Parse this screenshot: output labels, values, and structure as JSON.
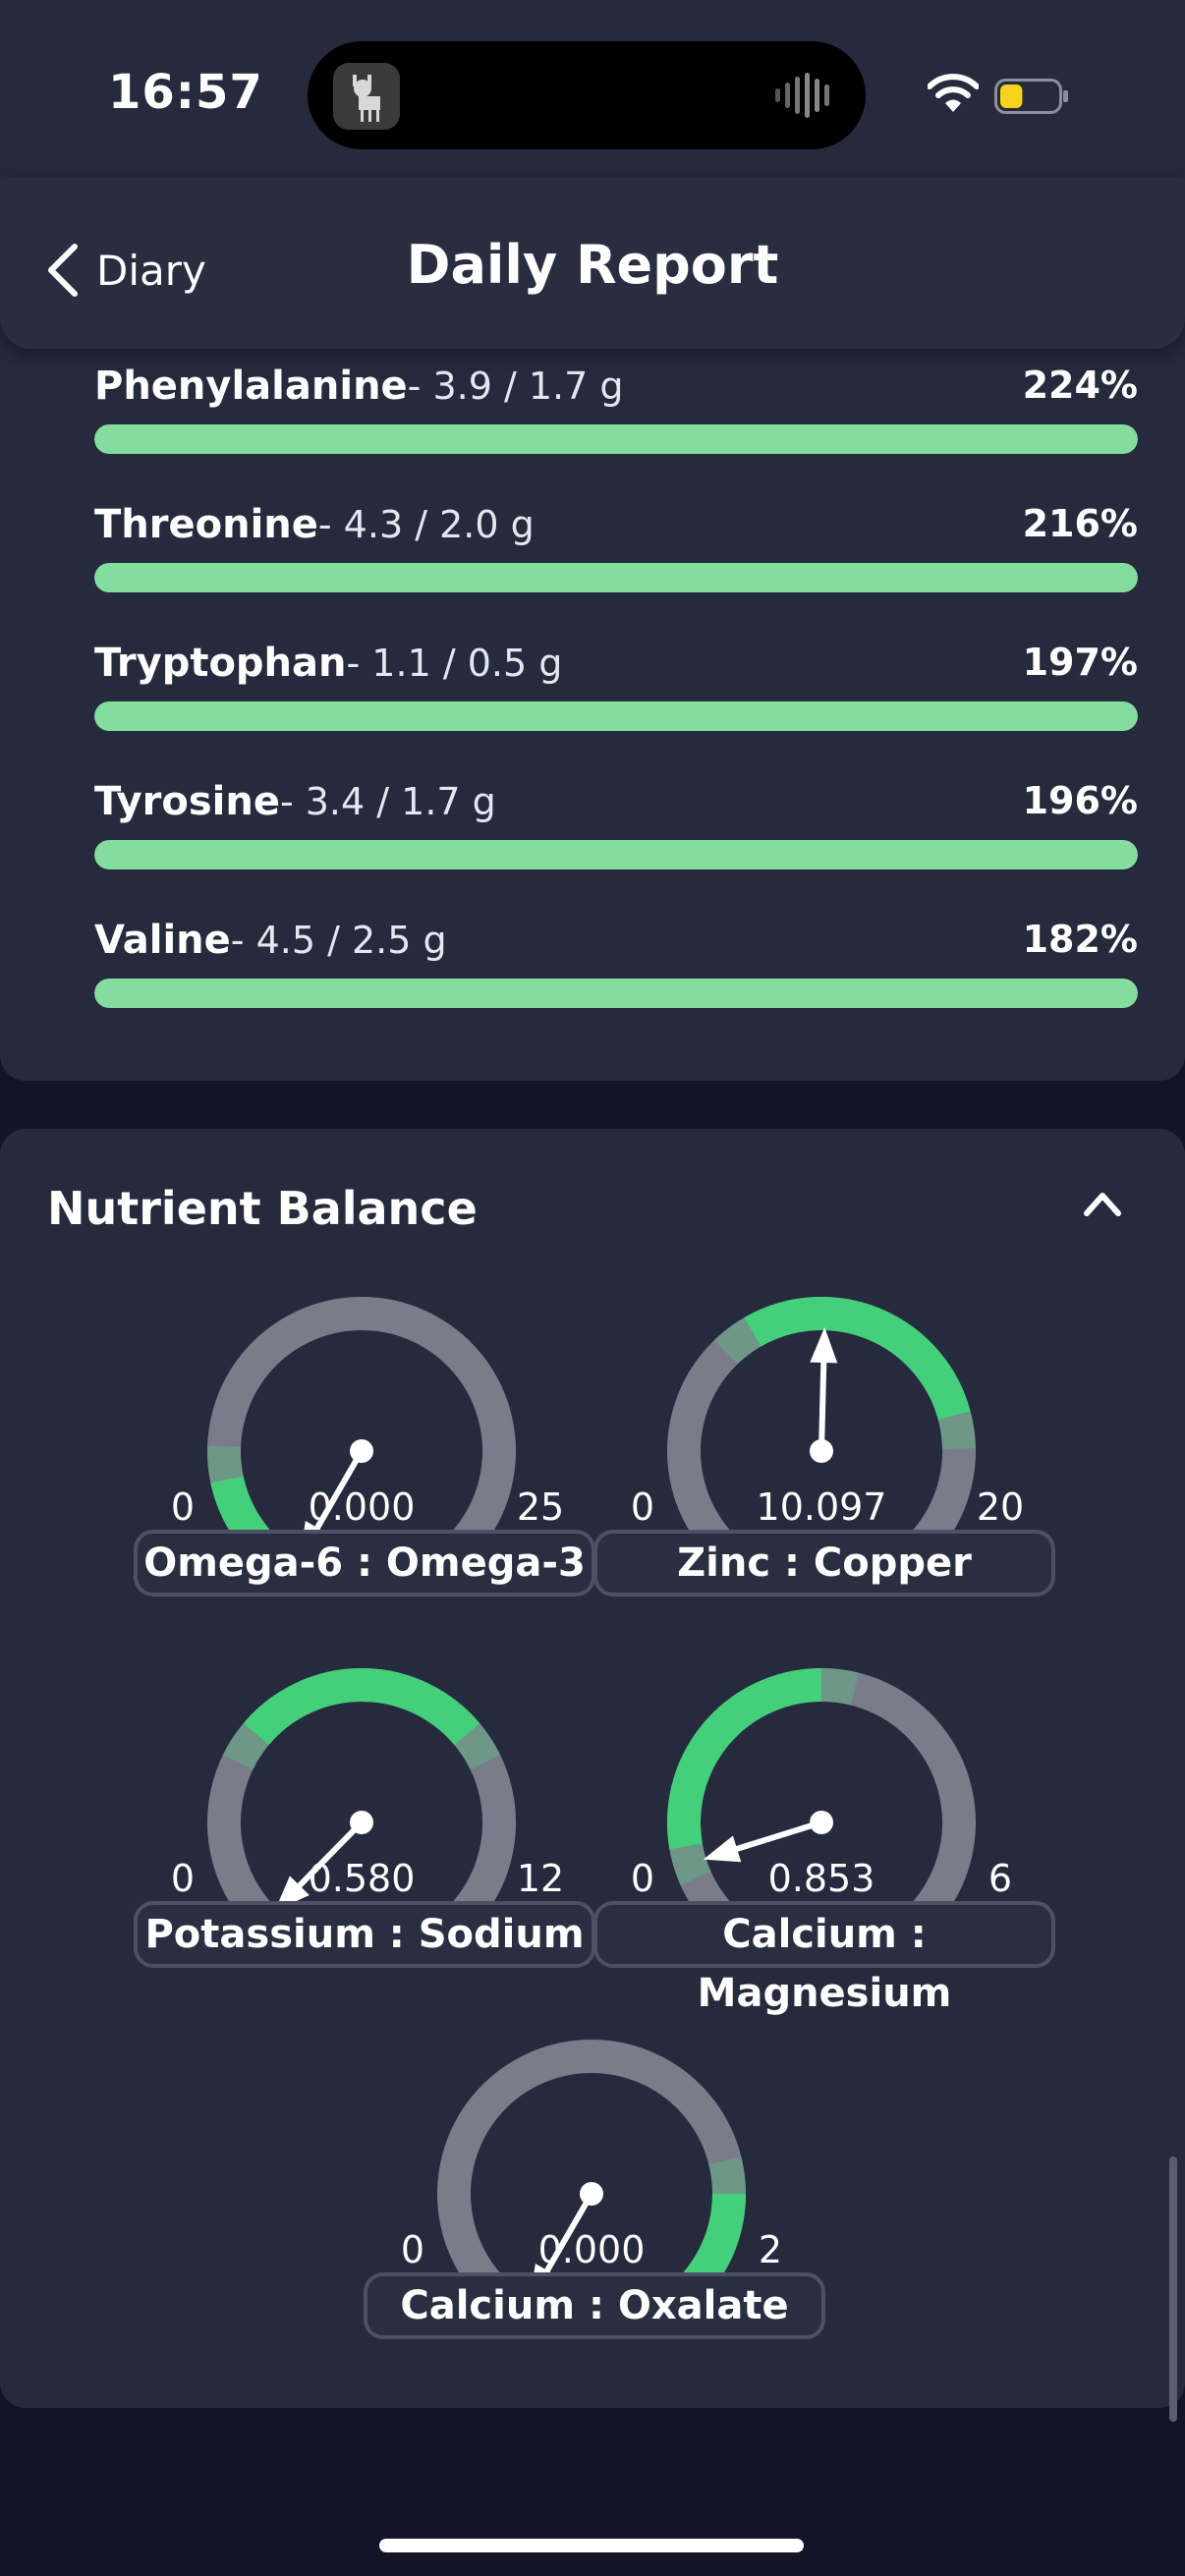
{
  "status_bar": {
    "time": "16:57",
    "wifi_icon": "wifi-icon",
    "battery_icon": "battery-low-icon",
    "battery_color": "#f5d31e",
    "battery_level": 0.4
  },
  "nav": {
    "back_label": "Diary",
    "title": "Daily Report"
  },
  "amino_acids": [
    {
      "name": "Phenylalanine",
      "amount": "- 3.9 / 1.7 g",
      "percent_label": "224%",
      "percent": 224
    },
    {
      "name": "Threonine",
      "amount": "- 4.3 / 2.0 g",
      "percent_label": "216%",
      "percent": 216
    },
    {
      "name": "Tryptophan",
      "amount": "- 1.1 / 0.5 g",
      "percent_label": "197%",
      "percent": 197
    },
    {
      "name": "Tyrosine",
      "amount": "- 3.4 / 1.7 g",
      "percent_label": "196%",
      "percent": 196
    },
    {
      "name": "Valine",
      "amount": "- 4.5 / 2.5 g",
      "percent_label": "182%",
      "percent": 182
    }
  ],
  "bar_color": "#84dc9e",
  "nutrient_balance": {
    "title": "Nutrient Balance",
    "gauges": [
      {
        "label": "Omega-6 : Omega-3",
        "min": 0,
        "max": 25,
        "value": 0,
        "value_label": "0.000",
        "good_low": 0,
        "good_high": 4
      },
      {
        "label": "Zinc : Copper",
        "min": 0,
        "max": 20,
        "value": 10.097,
        "value_label": "10.097",
        "good_low": 8,
        "good_high": 15
      },
      {
        "label": "Potassium : Sodium",
        "min": 0,
        "max": 12,
        "value": 0.58,
        "value_label": "0.580",
        "good_low": 4,
        "good_high": 8
      },
      {
        "label": "Calcium : Magnesium",
        "min": 0,
        "max": 6,
        "value": 0.853,
        "value_label": "0.853",
        "good_low": 1,
        "good_high": 3
      },
      {
        "label": "Calcium : Oxalate",
        "min": 0,
        "max": 2,
        "value": 0,
        "value_label": "0.000",
        "good_low": 1.6,
        "good_high": 2
      }
    ]
  }
}
